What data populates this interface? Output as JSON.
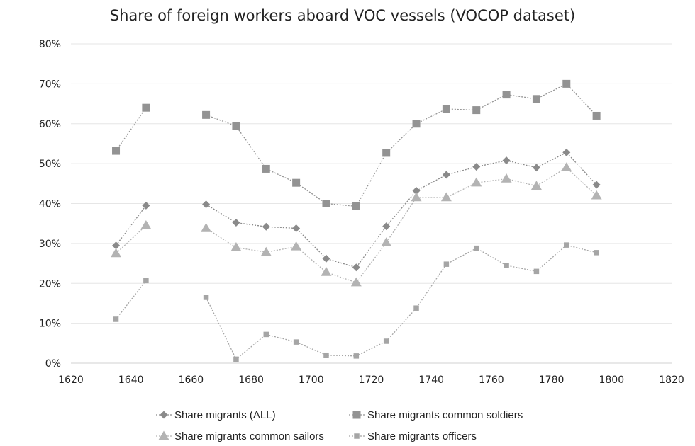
{
  "chart_data": {
    "type": "line",
    "title": "Share of foreign workers aboard VOC vessels (VOCOP dataset)",
    "xlabel": "",
    "ylabel": "",
    "xlim": [
      1620,
      1820
    ],
    "ylim": [
      0,
      0.8
    ],
    "x_ticks": [
      "1620",
      "1640",
      "1660",
      "1680",
      "1700",
      "1720",
      "1740",
      "1760",
      "1780",
      "1800",
      "1820"
    ],
    "y_ticks": [
      "0%",
      "10%",
      "20%",
      "30%",
      "40%",
      "50%",
      "60%",
      "70%",
      "80%"
    ],
    "grid": "horizontal",
    "legend_position": "bottom",
    "x": [
      1635,
      1645,
      1655,
      1665,
      1675,
      1685,
      1695,
      1705,
      1715,
      1725,
      1735,
      1745,
      1755,
      1765,
      1775,
      1785,
      1795
    ],
    "series": [
      {
        "name": "Share migrants (ALL)",
        "marker": "diamond",
        "color": "#8a8a8a",
        "values": [
          0.295,
          0.395,
          null,
          0.398,
          0.352,
          0.342,
          0.338,
          0.262,
          0.24,
          0.343,
          0.432,
          0.472,
          0.492,
          0.508,
          0.49,
          0.528,
          0.447
        ]
      },
      {
        "name": "Share migrants common soldiers",
        "marker": "square",
        "color": "#939393",
        "values": [
          0.532,
          0.64,
          null,
          0.622,
          0.594,
          0.487,
          0.452,
          0.4,
          0.393,
          0.527,
          0.6,
          0.637,
          0.634,
          0.673,
          0.662,
          0.7,
          0.62
        ]
      },
      {
        "name": "Share migrants common sailors",
        "marker": "triangle",
        "color": "#b3b3b3",
        "values": [
          0.275,
          0.345,
          null,
          0.338,
          0.29,
          0.278,
          0.292,
          0.228,
          0.202,
          0.302,
          0.415,
          0.415,
          0.452,
          0.462,
          0.444,
          0.49,
          0.42
        ]
      },
      {
        "name": "Share migrants officers",
        "marker": "small-square",
        "color": "#a5a5a5",
        "values": [
          0.11,
          0.207,
          null,
          0.165,
          0.01,
          0.072,
          0.053,
          0.02,
          0.018,
          0.055,
          0.138,
          0.248,
          0.288,
          0.245,
          0.23,
          0.296,
          0.277
        ]
      }
    ]
  }
}
